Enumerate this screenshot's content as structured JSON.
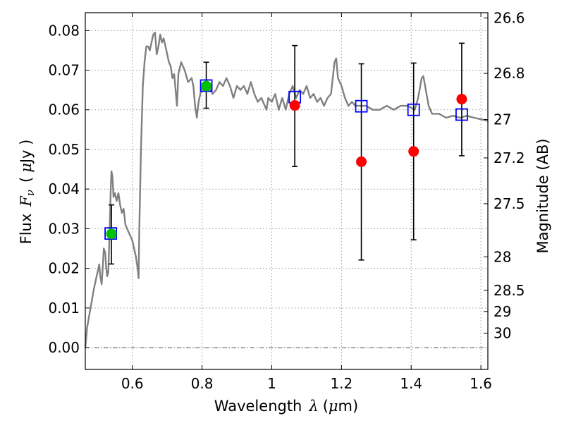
{
  "chart_data": {
    "type": "scatter",
    "xlabel_prefix": "Wavelength",
    "xlabel_symbol": "λ",
    "xlabel_unit_open": "(",
    "xlabel_unit_mu": "μ",
    "xlabel_unit_rest": "m)",
    "ylabel_prefix": "Flux",
    "ylabel_symbol": "F",
    "ylabel_subscript": "ν",
    "ylabel_unit_open": "(",
    "ylabel_unit_mu": "μ",
    "ylabel_unit_rest": "Jy )",
    "y2label": "Magnitude (AB)",
    "xlim": [
      0.465,
      1.62
    ],
    "ylim": [
      -0.0055,
      0.0845
    ],
    "grid": true,
    "x_ticks": [
      {
        "v": 0.6,
        "t": "0.6"
      },
      {
        "v": 0.8,
        "t": "0.8"
      },
      {
        "v": 1.0,
        "t": "1"
      },
      {
        "v": 1.2,
        "t": "1.2"
      },
      {
        "v": 1.4,
        "t": "1.4"
      },
      {
        "v": 1.6,
        "t": "1.6"
      }
    ],
    "y_ticks": [
      {
        "v": 0.0,
        "t": "0.00"
      },
      {
        "v": 0.01,
        "t": "0.01"
      },
      {
        "v": 0.02,
        "t": "0.02"
      },
      {
        "v": 0.03,
        "t": "0.03"
      },
      {
        "v": 0.04,
        "t": "0.04"
      },
      {
        "v": 0.05,
        "t": "0.05"
      },
      {
        "v": 0.06,
        "t": "0.06"
      },
      {
        "v": 0.07,
        "t": "0.07"
      },
      {
        "v": 0.08,
        "t": "0.08"
      }
    ],
    "mag_ticks": [
      {
        "m": 26.6,
        "t": "26.6"
      },
      {
        "m": 26.8,
        "t": "26.8"
      },
      {
        "m": 27.0,
        "t": "27"
      },
      {
        "m": 27.2,
        "t": "27.2"
      },
      {
        "m": 27.5,
        "t": "27.5"
      },
      {
        "m": 28.0,
        "t": "28"
      },
      {
        "m": 28.5,
        "t": "28.5"
      },
      {
        "m": 29.0,
        "t": "29"
      },
      {
        "m": 30.0,
        "t": "30"
      }
    ],
    "zero_line": 0.0,
    "sed_model": [
      [
        0.465,
        0.0
      ],
      [
        0.47,
        0.005
      ],
      [
        0.48,
        0.01
      ],
      [
        0.49,
        0.015
      ],
      [
        0.5,
        0.019
      ],
      [
        0.505,
        0.021
      ],
      [
        0.508,
        0.018
      ],
      [
        0.512,
        0.016
      ],
      [
        0.515,
        0.02
      ],
      [
        0.518,
        0.025
      ],
      [
        0.522,
        0.024
      ],
      [
        0.525,
        0.02
      ],
      [
        0.528,
        0.018
      ],
      [
        0.531,
        0.019
      ],
      [
        0.535,
        0.03
      ],
      [
        0.538,
        0.04
      ],
      [
        0.54,
        0.0445
      ],
      [
        0.543,
        0.043
      ],
      [
        0.546,
        0.038
      ],
      [
        0.55,
        0.039
      ],
      [
        0.555,
        0.037
      ],
      [
        0.56,
        0.039
      ],
      [
        0.565,
        0.036
      ],
      [
        0.57,
        0.034
      ],
      [
        0.575,
        0.035
      ],
      [
        0.58,
        0.031
      ],
      [
        0.585,
        0.03
      ],
      [
        0.59,
        0.029
      ],
      [
        0.595,
        0.028
      ],
      [
        0.6,
        0.027
      ],
      [
        0.605,
        0.025
      ],
      [
        0.61,
        0.023
      ],
      [
        0.615,
        0.02
      ],
      [
        0.618,
        0.0175
      ],
      [
        0.62,
        0.03
      ],
      [
        0.625,
        0.051
      ],
      [
        0.63,
        0.066
      ],
      [
        0.635,
        0.072
      ],
      [
        0.64,
        0.076
      ],
      [
        0.645,
        0.076
      ],
      [
        0.65,
        0.075
      ],
      [
        0.655,
        0.077
      ],
      [
        0.66,
        0.079
      ],
      [
        0.665,
        0.0795
      ],
      [
        0.67,
        0.074
      ],
      [
        0.675,
        0.076
      ],
      [
        0.68,
        0.079
      ],
      [
        0.685,
        0.077
      ],
      [
        0.69,
        0.078
      ],
      [
        0.695,
        0.076
      ],
      [
        0.7,
        0.074
      ],
      [
        0.705,
        0.072
      ],
      [
        0.71,
        0.071
      ],
      [
        0.715,
        0.068
      ],
      [
        0.72,
        0.069
      ],
      [
        0.725,
        0.064
      ],
      [
        0.728,
        0.061
      ],
      [
        0.732,
        0.069
      ],
      [
        0.74,
        0.072
      ],
      [
        0.75,
        0.07
      ],
      [
        0.76,
        0.067
      ],
      [
        0.77,
        0.068
      ],
      [
        0.775,
        0.066
      ],
      [
        0.78,
        0.061
      ],
      [
        0.785,
        0.058
      ],
      [
        0.79,
        0.062
      ],
      [
        0.8,
        0.066
      ],
      [
        0.81,
        0.067
      ],
      [
        0.82,
        0.066
      ],
      [
        0.83,
        0.064
      ],
      [
        0.84,
        0.065
      ],
      [
        0.85,
        0.067
      ],
      [
        0.86,
        0.066
      ],
      [
        0.87,
        0.068
      ],
      [
        0.88,
        0.066
      ],
      [
        0.89,
        0.063
      ],
      [
        0.9,
        0.066
      ],
      [
        0.91,
        0.065
      ],
      [
        0.92,
        0.066
      ],
      [
        0.93,
        0.064
      ],
      [
        0.94,
        0.067
      ],
      [
        0.95,
        0.064
      ],
      [
        0.96,
        0.062
      ],
      [
        0.97,
        0.063
      ],
      [
        0.98,
        0.061
      ],
      [
        0.985,
        0.06
      ],
      [
        0.99,
        0.063
      ],
      [
        1.0,
        0.062
      ],
      [
        1.01,
        0.064
      ],
      [
        1.02,
        0.06
      ],
      [
        1.03,
        0.063
      ],
      [
        1.04,
        0.06
      ],
      [
        1.05,
        0.064
      ],
      [
        1.06,
        0.066
      ],
      [
        1.07,
        0.063
      ],
      [
        1.08,
        0.065
      ],
      [
        1.09,
        0.064
      ],
      [
        1.1,
        0.066
      ],
      [
        1.11,
        0.063
      ],
      [
        1.12,
        0.064
      ],
      [
        1.13,
        0.062
      ],
      [
        1.14,
        0.063
      ],
      [
        1.15,
        0.061
      ],
      [
        1.16,
        0.063
      ],
      [
        1.17,
        0.064
      ],
      [
        1.175,
        0.068
      ],
      [
        1.18,
        0.072
      ],
      [
        1.185,
        0.073
      ],
      [
        1.19,
        0.068
      ],
      [
        1.2,
        0.066
      ],
      [
        1.21,
        0.063
      ],
      [
        1.22,
        0.061
      ],
      [
        1.23,
        0.062
      ],
      [
        1.24,
        0.061
      ],
      [
        1.25,
        0.061
      ],
      [
        1.27,
        0.061
      ],
      [
        1.29,
        0.06
      ],
      [
        1.31,
        0.06
      ],
      [
        1.33,
        0.061
      ],
      [
        1.35,
        0.06
      ],
      [
        1.37,
        0.061
      ],
      [
        1.39,
        0.061
      ],
      [
        1.41,
        0.06
      ],
      [
        1.42,
        0.063
      ],
      [
        1.43,
        0.068
      ],
      [
        1.435,
        0.0685
      ],
      [
        1.44,
        0.066
      ],
      [
        1.45,
        0.061
      ],
      [
        1.46,
        0.059
      ],
      [
        1.48,
        0.059
      ],
      [
        1.5,
        0.058
      ],
      [
        1.52,
        0.0585
      ],
      [
        1.54,
        0.058
      ],
      [
        1.56,
        0.0585
      ],
      [
        1.58,
        0.058
      ],
      [
        1.6,
        0.0576
      ],
      [
        1.62,
        0.0572
      ]
    ],
    "model_points": [
      {
        "x": 0.538,
        "y": 0.0288
      },
      {
        "x": 0.812,
        "y": 0.0661
      },
      {
        "x": 1.066,
        "y": 0.0632
      },
      {
        "x": 1.257,
        "y": 0.0609
      },
      {
        "x": 1.407,
        "y": 0.06
      },
      {
        "x": 1.545,
        "y": 0.0588
      }
    ],
    "hst_points": [
      {
        "x": 0.54,
        "y": 0.0287,
        "lo": 0.0211,
        "hi": 0.036
      },
      {
        "x": 0.812,
        "y": 0.066,
        "lo": 0.0604,
        "hi": 0.072
      }
    ],
    "ir_points": [
      {
        "x": 1.066,
        "y": 0.0611,
        "lo": 0.0457,
        "hi": 0.0762
      },
      {
        "x": 1.257,
        "y": 0.0469,
        "lo": 0.0221,
        "hi": 0.0716
      },
      {
        "x": 1.407,
        "y": 0.0495,
        "lo": 0.0272,
        "hi": 0.0718
      },
      {
        "x": 1.545,
        "y": 0.0627,
        "lo": 0.0484,
        "hi": 0.0768
      }
    ],
    "colors": {
      "sed": "#808080",
      "model_marker": "#0000ff",
      "hst_marker": "#00bf00",
      "ir_marker": "#ff0000",
      "grid": "#999999",
      "zero_line": "#555555"
    }
  }
}
